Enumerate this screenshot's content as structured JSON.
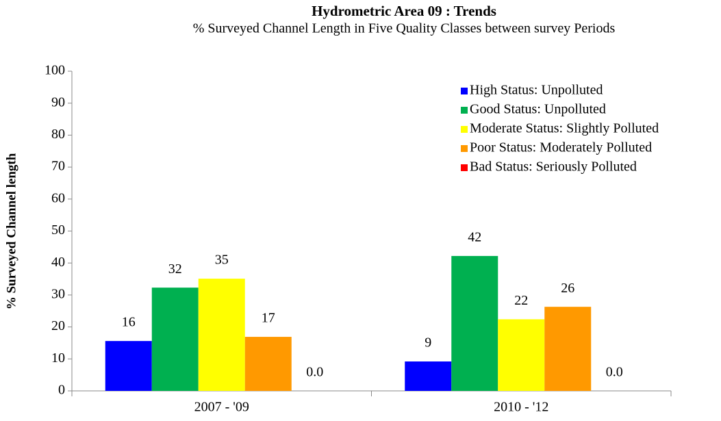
{
  "chart_data": {
    "type": "bar",
    "title": "Hydrometric Area 09 : Trends",
    "subtitle": "% Surveyed Channel Length in Five Quality Classes between survey Periods",
    "ylabel": "% Surveyed Channel length",
    "categories": [
      "2007 - '09",
      "2010 - '12"
    ],
    "series": [
      {
        "name": "High Status: Unpolluted",
        "color": "#0000ff",
        "values": [
          15.6,
          9.2
        ],
        "value_labels": [
          "16",
          "9"
        ]
      },
      {
        "name": "Good Status: Unpolluted",
        "color": "#00b050",
        "values": [
          32.3,
          42.2
        ],
        "value_labels": [
          "32",
          "42"
        ]
      },
      {
        "name": "Moderate Status: Slightly Polluted",
        "color": "#ffff00",
        "values": [
          35.1,
          22.4
        ],
        "value_labels": [
          "35",
          "22"
        ]
      },
      {
        "name": "Poor Status: Moderately Polluted",
        "color": "#ff9900",
        "values": [
          16.9,
          26.3
        ],
        "value_labels": [
          "17",
          "26"
        ]
      },
      {
        "name": "Bad Status: Seriously Polluted",
        "color": "#ff0000",
        "values": [
          0,
          0
        ],
        "value_labels": [
          "0.0",
          "0.0"
        ]
      }
    ],
    "ylim": [
      0,
      100
    ],
    "yticks": [
      0,
      10,
      20,
      30,
      40,
      50,
      60,
      70,
      80,
      90,
      100
    ],
    "legend": "upper right"
  }
}
